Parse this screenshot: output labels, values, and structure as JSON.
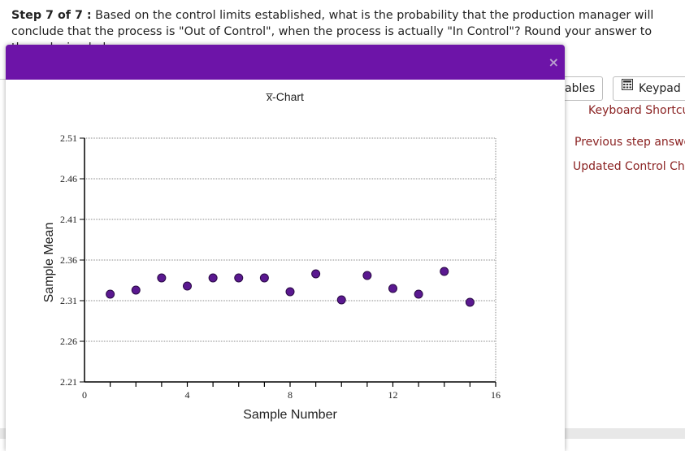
{
  "question": {
    "step_label": "Step 7 of 7 :",
    "text": " Based on the control limits established, what is the probability that the production manager will conclude that the process is \"Out of Control\", when the process is actually \"In Control\"? Round your answer to three decimal places."
  },
  "toolbar": {
    "tables_label": "ables",
    "keypad_label": "Keypad"
  },
  "links": {
    "keyboard_shortcuts": "Keyboard Shortcut",
    "previous_step": "Previous step answer",
    "updated_chart": "Updated Control Cha"
  },
  "modal": {
    "close_glyph": "×"
  },
  "colors": {
    "header": "#6d14a8",
    "point_fill": "#5a1890",
    "link": "#8b2323"
  },
  "chart_data": {
    "type": "scatter",
    "title": "x̅-Chart",
    "xlabel": "Sample Number",
    "ylabel": "Sample Mean",
    "xlim": [
      0,
      16
    ],
    "ylim": [
      2.21,
      2.51
    ],
    "x_ticks": [
      0,
      4,
      8,
      12,
      16
    ],
    "y_ticks": [
      "2.21",
      "2.26",
      "2.31",
      "2.36",
      "2.41",
      "2.46",
      "2.51"
    ],
    "grid": true,
    "points": [
      {
        "x": 1,
        "y": 2.318
      },
      {
        "x": 2,
        "y": 2.323
      },
      {
        "x": 3,
        "y": 2.338
      },
      {
        "x": 4,
        "y": 2.328
      },
      {
        "x": 5,
        "y": 2.338
      },
      {
        "x": 6,
        "y": 2.338
      },
      {
        "x": 7,
        "y": 2.338
      },
      {
        "x": 8,
        "y": 2.321
      },
      {
        "x": 9,
        "y": 2.343
      },
      {
        "x": 10,
        "y": 2.311
      },
      {
        "x": 11,
        "y": 2.341
      },
      {
        "x": 12,
        "y": 2.325
      },
      {
        "x": 13,
        "y": 2.318
      },
      {
        "x": 14,
        "y": 2.346
      },
      {
        "x": 15,
        "y": 2.308
      }
    ]
  }
}
